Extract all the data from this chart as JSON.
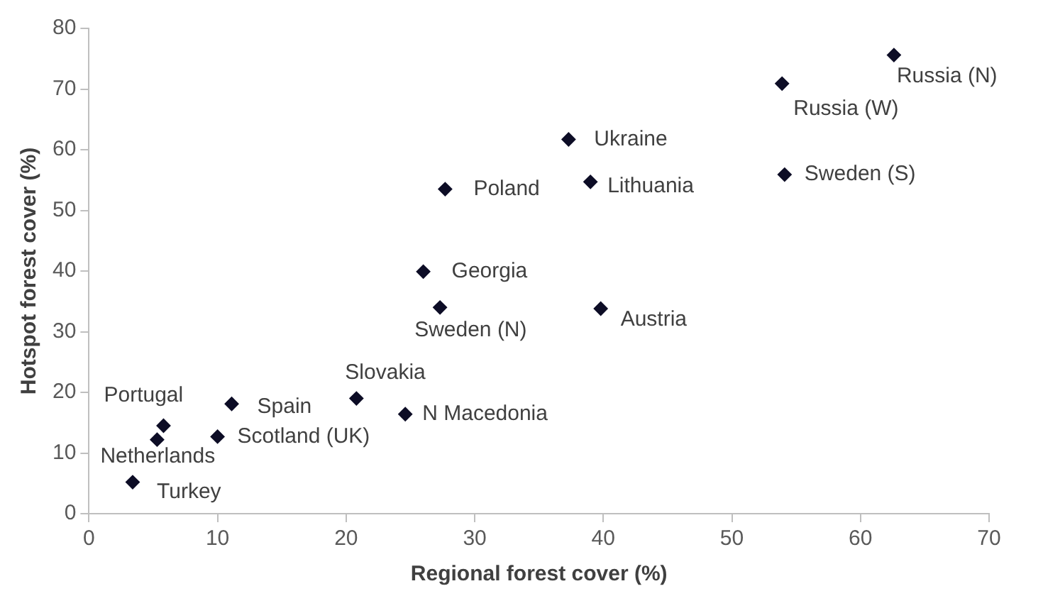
{
  "chart_data": {
    "type": "scatter",
    "xlabel": "Regional forest cover (%)",
    "ylabel": "Hotspot forest cover (%)",
    "x": [
      62.6,
      53.9,
      54.1,
      37.3,
      39.0,
      27.7,
      26.0,
      27.3,
      39.8,
      20.8,
      24.6,
      11.1,
      10.0,
      5.8,
      5.3,
      3.4
    ],
    "series": [
      {
        "color": "#0d0d26",
        "values": [
          75.6,
          70.9,
          55.9,
          61.7,
          54.7,
          53.5,
          39.9,
          34.0,
          33.8,
          19.0,
          16.4,
          18.1,
          12.7,
          14.5,
          12.2,
          5.2
        ]
      }
    ],
    "xlim": [
      0,
      70
    ],
    "xticks": [
      0,
      10,
      20,
      30,
      40,
      50,
      60,
      70
    ],
    "ylim": [
      0,
      80
    ],
    "yticks": [
      0,
      10,
      20,
      30,
      40,
      50,
      60,
      70,
      80
    ],
    "grid": false,
    "legend": false,
    "marker": "diamond",
    "annotations": [
      {
        "text": "Russia (N)",
        "x": 62.6,
        "y": 75.6
      },
      {
        "text": "Russia (W)",
        "x": 53.9,
        "y": 70.9
      },
      {
        "text": "Sweden (S)",
        "x": 54.1,
        "y": 55.9
      },
      {
        "text": "Ukraine",
        "x": 37.3,
        "y": 61.7
      },
      {
        "text": "Lithuania",
        "x": 39.0,
        "y": 54.7
      },
      {
        "text": "Poland",
        "x": 27.7,
        "y": 53.5
      },
      {
        "text": "Georgia",
        "x": 26.0,
        "y": 39.9
      },
      {
        "text": "Sweden (N)",
        "x": 27.3,
        "y": 34.0
      },
      {
        "text": "Austria",
        "x": 39.8,
        "y": 33.8
      },
      {
        "text": "Slovakia",
        "x": 20.8,
        "y": 19.0
      },
      {
        "text": "N Macedonia",
        "x": 24.6,
        "y": 16.4
      },
      {
        "text": "Spain",
        "x": 11.1,
        "y": 18.1
      },
      {
        "text": "Scotland (UK)",
        "x": 10.0,
        "y": 12.7
      },
      {
        "text": "Portugal",
        "x": 5.8,
        "y": 14.5
      },
      {
        "text": "Netherlands",
        "x": 5.3,
        "y": 12.2
      },
      {
        "text": "Turkey",
        "x": 3.4,
        "y": 5.2
      }
    ]
  }
}
